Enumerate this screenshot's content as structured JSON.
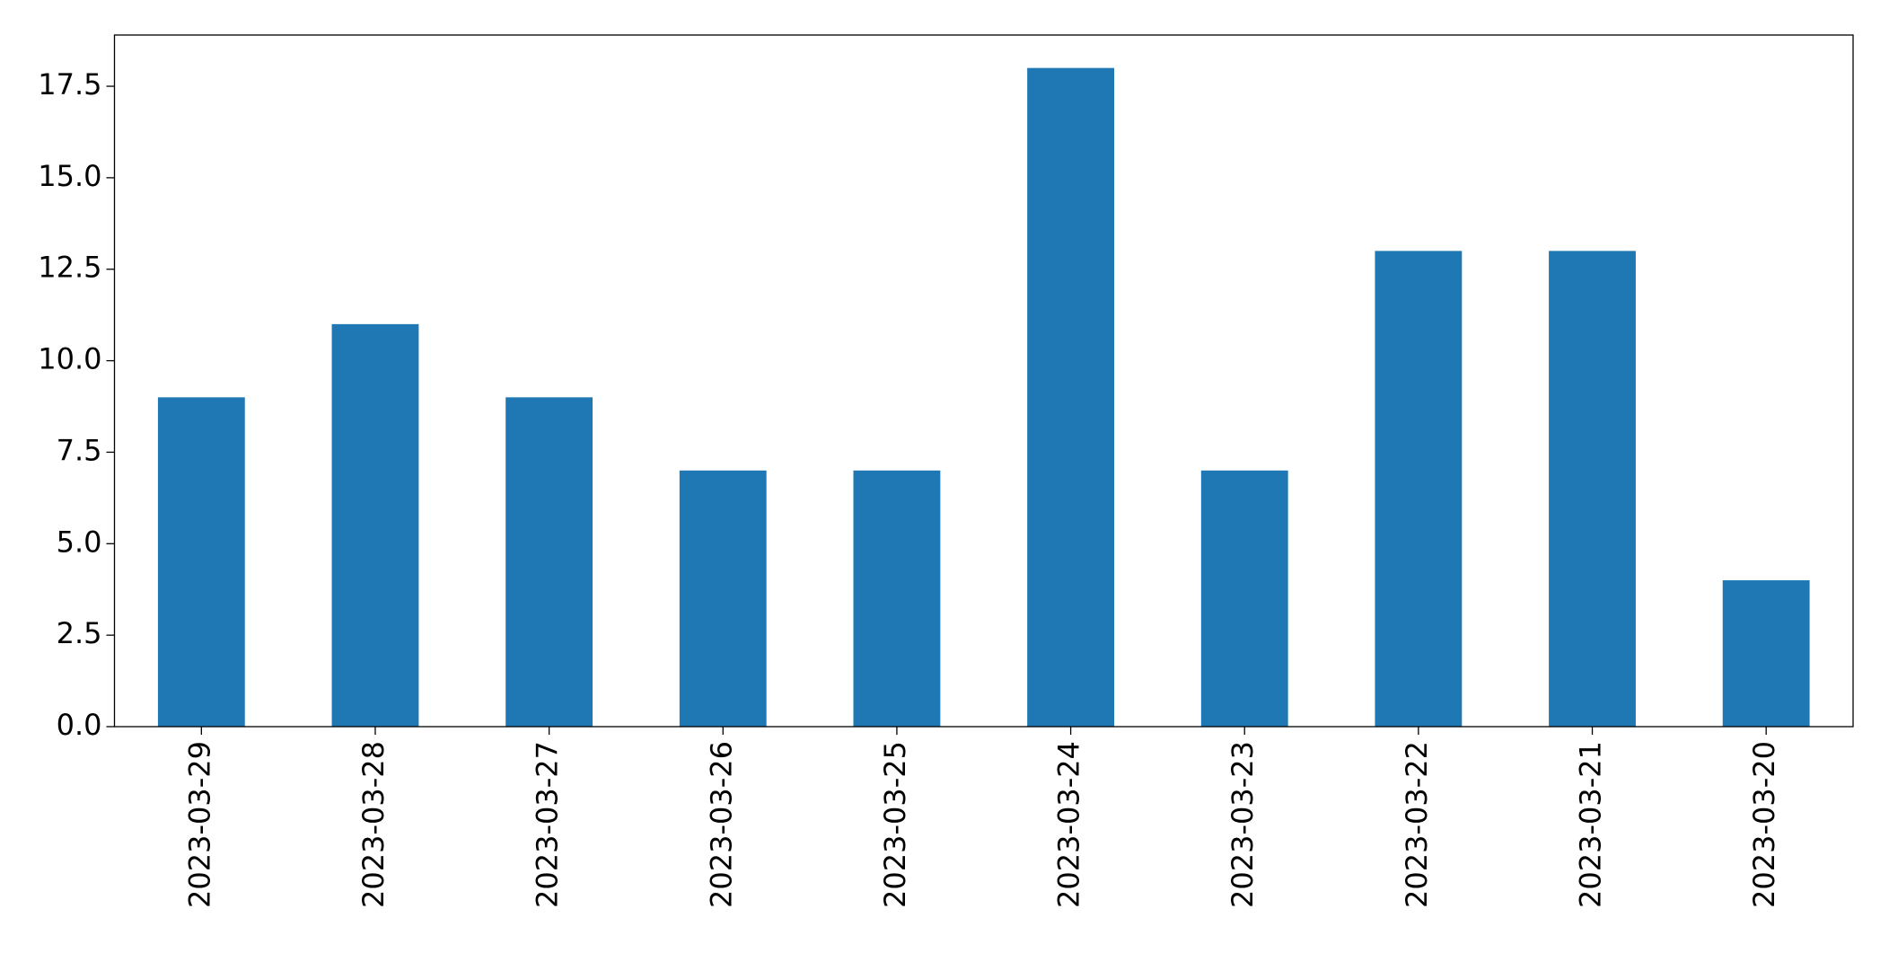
{
  "chart_data": {
    "type": "bar",
    "categories": [
      "2023-03-29",
      "2023-03-28",
      "2023-03-27",
      "2023-03-26",
      "2023-03-25",
      "2023-03-24",
      "2023-03-23",
      "2023-03-22",
      "2023-03-21",
      "2023-03-20"
    ],
    "values": [
      9,
      11,
      9,
      7,
      7,
      18,
      7,
      13,
      13,
      4
    ],
    "color": "#1f77b4",
    "ylim": [
      0,
      18.9
    ],
    "yticks": [
      {
        "value": 0,
        "label": "0.0"
      },
      2.5,
      {
        "value": 5,
        "label": "5.0"
      },
      7.5,
      {
        "value": 10,
        "label": "10.0"
      },
      12.5,
      {
        "value": 15,
        "label": "15.0"
      },
      17.5
    ],
    "grid": false
  }
}
